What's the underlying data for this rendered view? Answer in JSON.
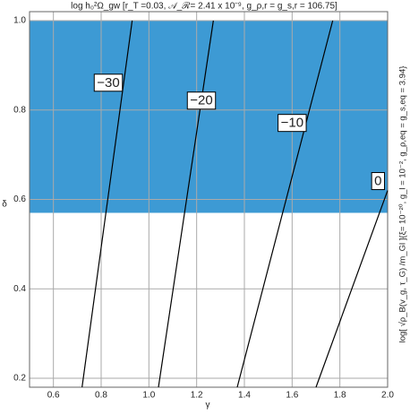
{
  "chart_data": {
    "type": "contour",
    "title": "log h₀²Ω_gw [r_T =0.03, 𝒜_ℛ= 2.41 x 10⁻⁹, g_ρ,r = g_s,r = 106.75]",
    "right_label": "log[ √ρ_B(v_g, τ_G) /m_Gl ]{ξ= 10⁻²⁰, g_l = 10⁻², g_ρ,eq = g_s,eq = 3.94}",
    "x_label": "γ",
    "y_label": "δ",
    "xlim": [
      0.5,
      2.0
    ],
    "ylim": [
      0.18,
      1.02
    ],
    "xticks": [
      0.6,
      0.8,
      {
        "value": 1.0,
        "label": "1.0"
      },
      1.2,
      1.4,
      1.6,
      1.8,
      {
        "value": 2.0,
        "label": "2.0"
      }
    ],
    "yticks": [
      0.2,
      0.4,
      0.6,
      0.8,
      {
        "value": 1.0,
        "label": "1.0"
      }
    ],
    "grid": true,
    "region": {
      "x": [
        0.5,
        2.0
      ],
      "y": [
        0.57,
        1.0
      ],
      "color": "#3d9ad4"
    },
    "contours": [
      {
        "level": {
          "value": -30,
          "label": "−30"
        },
        "x": [
          0.72,
          0.93
        ],
        "y": [
          0.18,
          1.0
        ],
        "label_at": [
          0.83,
          0.86
        ]
      },
      {
        "level": {
          "value": -20,
          "label": "−20"
        },
        "x": [
          1.04,
          1.27
        ],
        "y": [
          0.18,
          1.0
        ],
        "label_at": [
          1.22,
          0.82
        ]
      },
      {
        "level": {
          "value": -10,
          "label": "−10"
        },
        "x": [
          1.37,
          1.77
        ],
        "y": [
          0.18,
          1.0
        ],
        "label_at": [
          1.6,
          0.77
        ]
      },
      {
        "level": {
          "value": 0,
          "label": "0"
        },
        "x": [
          1.7,
          2.0
        ],
        "y": [
          0.18,
          0.62
        ],
        "label_at": [
          1.96,
          0.64
        ]
      }
    ]
  }
}
